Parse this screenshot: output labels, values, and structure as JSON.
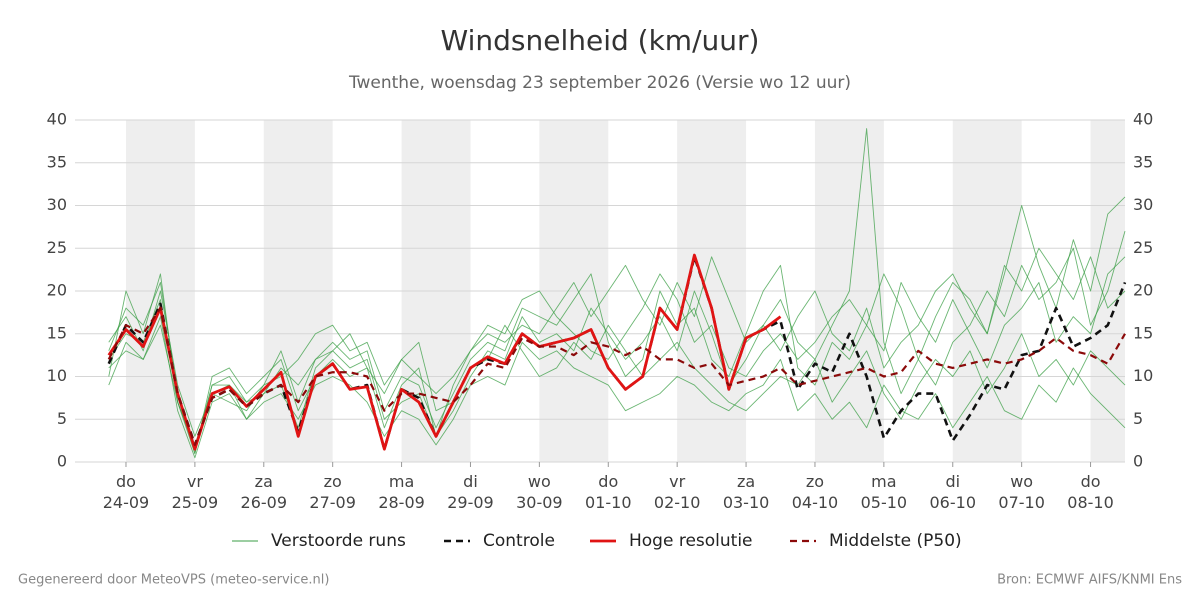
{
  "chart_data": {
    "type": "line",
    "title": "Windsnelheid (km/uur)",
    "subtitle": "Twenthe, woensdag 23 september 2026 (Versie wo 12 uur)",
    "footer_left": "Gegenereerd door MeteoVPS (meteo-service.nl)",
    "footer_right": "Bron: ECMWF AIFS/KNMI Ens",
    "xlim": [
      -0.74,
      14.5
    ],
    "ylim": [
      0,
      40
    ],
    "yticks": [
      0,
      5,
      10,
      15,
      20,
      25,
      30,
      35,
      40
    ],
    "right_axis": true,
    "grid": true,
    "shade_alternate_days": true,
    "legend": "bottom",
    "xticks": [
      {
        "value": 0,
        "label": "do 24-09"
      },
      {
        "value": 1,
        "label": "vr 25-09"
      },
      {
        "value": 2,
        "label": "za 26-09"
      },
      {
        "value": 3,
        "label": "zo 27-09"
      },
      {
        "value": 4,
        "label": "ma 28-09"
      },
      {
        "value": 5,
        "label": "di 29-09"
      },
      {
        "value": 6,
        "label": "wo 30-09"
      },
      {
        "value": 7,
        "label": "do 01-10"
      },
      {
        "value": 8,
        "label": "vr 02-10"
      },
      {
        "value": 9,
        "label": "za 03-10"
      },
      {
        "value": 10,
        "label": "zo 04-10"
      },
      {
        "value": 11,
        "label": "ma 05-10"
      },
      {
        "value": 12,
        "label": "di 06-10"
      },
      {
        "value": 13,
        "label": "wo 07-10"
      },
      {
        "value": 14,
        "label": "do 08-10"
      }
    ],
    "x": [
      -0.25,
      0,
      0.25,
      0.5,
      0.75,
      1,
      1.25,
      1.5,
      1.75,
      2,
      2.25,
      2.5,
      2.75,
      3,
      3.25,
      3.5,
      3.75,
      4,
      4.25,
      4.5,
      4.75,
      5,
      5.25,
      5.5,
      5.75,
      6,
      6.25,
      6.5,
      6.75,
      7,
      7.25,
      7.5,
      7.75,
      8,
      8.25,
      8.5,
      8.75,
      9,
      9.25,
      9.5,
      9.75,
      10,
      10.25,
      10.5,
      10.75,
      11,
      11.25,
      11.5,
      11.75,
      12,
      12.25,
      12.5,
      12.75,
      13,
      13.25,
      13.5,
      13.75,
      14,
      14.25,
      14.5
    ],
    "series": [
      {
        "name": "Verstoorde runs",
        "color": "#3a9e44",
        "style": "solid",
        "linewidth": 0.9,
        "runs": [
          [
            10,
            20,
            15,
            22,
            7,
            1,
            9,
            10,
            7,
            9,
            13,
            7,
            12,
            14,
            12,
            13,
            6,
            10,
            9,
            4,
            8,
            12,
            14,
            13,
            18,
            17,
            16,
            19,
            22,
            14,
            10,
            12,
            20,
            16,
            18,
            12,
            10,
            15,
            20,
            23,
            11,
            9,
            14,
            12,
            16,
            22,
            18,
            12,
            9,
            14,
            16,
            20,
            17,
            23,
            19,
            21,
            25,
            16,
            20,
            27
          ],
          [
            14,
            17,
            13,
            20,
            9,
            3,
            8,
            9,
            5,
            7,
            8,
            5,
            9,
            10,
            9,
            7,
            3,
            6,
            5,
            2,
            5,
            9,
            10,
            9,
            14,
            12,
            13,
            11,
            10,
            9,
            6,
            7,
            8,
            10,
            9,
            7,
            6,
            8,
            9,
            12,
            6,
            8,
            5,
            7,
            4,
            9,
            6,
            5,
            8,
            4,
            7,
            10,
            6,
            5,
            9,
            7,
            11,
            8,
            6,
            4
          ],
          [
            9,
            14,
            12,
            17,
            6,
            0.5,
            7,
            8,
            5,
            8,
            11,
            9,
            12,
            13,
            15,
            11,
            8,
            12,
            10,
            8,
            10,
            13,
            15,
            14,
            16,
            15,
            18,
            21,
            17,
            20,
            23,
            19,
            16,
            21,
            17,
            24,
            19,
            14,
            16,
            13,
            17,
            20,
            15,
            13,
            18,
            11,
            14,
            16,
            20,
            22,
            18,
            15,
            23,
            20,
            25,
            22,
            19,
            24,
            18,
            20
          ],
          [
            11,
            13,
            12,
            16,
            7,
            2,
            8,
            7,
            6,
            9,
            10,
            12,
            15,
            16,
            13,
            14,
            9,
            12,
            14,
            6,
            7,
            11,
            12,
            16,
            13,
            10,
            11,
            14,
            12,
            16,
            13,
            10,
            12,
            14,
            11,
            9,
            7,
            6,
            8,
            10,
            9,
            12,
            7,
            10,
            13,
            8,
            5,
            9,
            12,
            10,
            13,
            8,
            11,
            15,
            10,
            12,
            9,
            13,
            11,
            9
          ],
          [
            13,
            18,
            16,
            21,
            8,
            1,
            10,
            11,
            8,
            10,
            12,
            6,
            10,
            12,
            10,
            11,
            4,
            9,
            11,
            3,
            9,
            13,
            16,
            15,
            19,
            20,
            17,
            15,
            13,
            12,
            15,
            18,
            22,
            19,
            14,
            16,
            11,
            10,
            13,
            15,
            12,
            14,
            17,
            19,
            16,
            13,
            21,
            17,
            14,
            19,
            15,
            11,
            16,
            18,
            21,
            14,
            17,
            15,
            22,
            24
          ],
          [
            12,
            15,
            14,
            19,
            7,
            1.5,
            9,
            9,
            7,
            8,
            9,
            4,
            11,
            13,
            11,
            12,
            5,
            7,
            8,
            3,
            6,
            10,
            13,
            12,
            17,
            14,
            15,
            13,
            18,
            15,
            12,
            14,
            17,
            13,
            20,
            15,
            9,
            12,
            16,
            19,
            14,
            12,
            16,
            20,
            39,
            14,
            8,
            12,
            17,
            21,
            19,
            15,
            22,
            30,
            23,
            18,
            26,
            20,
            29,
            31
          ]
        ]
      },
      {
        "name": "Controle",
        "color": "#111111",
        "style": "dashed",
        "linewidth": 2.6,
        "values": [
          11.5,
          16,
          14,
          18.5,
          8,
          2,
          7.5,
          8.5,
          6.5,
          8,
          9,
          3.5,
          10,
          11.5,
          8.5,
          9,
          1.5,
          8.5,
          7.5,
          3,
          7,
          11,
          12,
          11.5,
          15,
          13.5,
          14,
          14.5,
          15.5,
          11,
          8.5,
          10,
          18,
          15.5,
          24,
          18,
          8.5,
          14.5,
          15.5,
          16.5,
          8.5,
          11.5,
          10.5,
          15,
          10,
          2.8,
          6,
          8,
          8,
          2.5,
          5.5,
          9,
          8.5,
          12.5,
          13,
          18,
          13.5,
          14.5,
          16,
          21
        ]
      },
      {
        "name": "Hoge resolutie",
        "color": "#e01414",
        "style": "solid",
        "linewidth": 2.8,
        "values": [
          12.5,
          15.5,
          13.5,
          18,
          8,
          1.5,
          8,
          8.8,
          6.5,
          8.5,
          10.5,
          3,
          10,
          11.5,
          8.5,
          8.8,
          1.5,
          8.5,
          7,
          3,
          7,
          11,
          12.3,
          11.5,
          15,
          13.5,
          14,
          14.5,
          15.5,
          11,
          8.5,
          10,
          18,
          15.5,
          24.2,
          18,
          8.5,
          14.5,
          15.5,
          17,
          null,
          null,
          null,
          null,
          null,
          null,
          null,
          null,
          null,
          null,
          null,
          null,
          null,
          null,
          null,
          null,
          null,
          null,
          null,
          null
        ]
      },
      {
        "name": "Middelste (P50)",
        "color": "#8b0a0a",
        "style": "dashed",
        "linewidth": 2.2,
        "values": [
          12,
          16,
          15,
          18,
          8,
          2,
          7.5,
          8.5,
          6.5,
          8,
          9,
          7,
          10,
          10.5,
          10.5,
          10,
          6,
          8,
          8,
          7.5,
          7,
          9,
          11.5,
          11,
          14.5,
          13.5,
          13.5,
          12.5,
          14,
          13.5,
          12.5,
          13.5,
          12,
          12,
          11,
          11.5,
          9,
          9.5,
          10,
          11,
          9,
          9.5,
          10,
          10.5,
          11,
          10,
          10.5,
          13,
          11.5,
          11,
          11.5,
          12,
          11.5,
          12,
          13,
          14.5,
          13,
          12.5,
          11.5,
          15
        ]
      }
    ]
  }
}
